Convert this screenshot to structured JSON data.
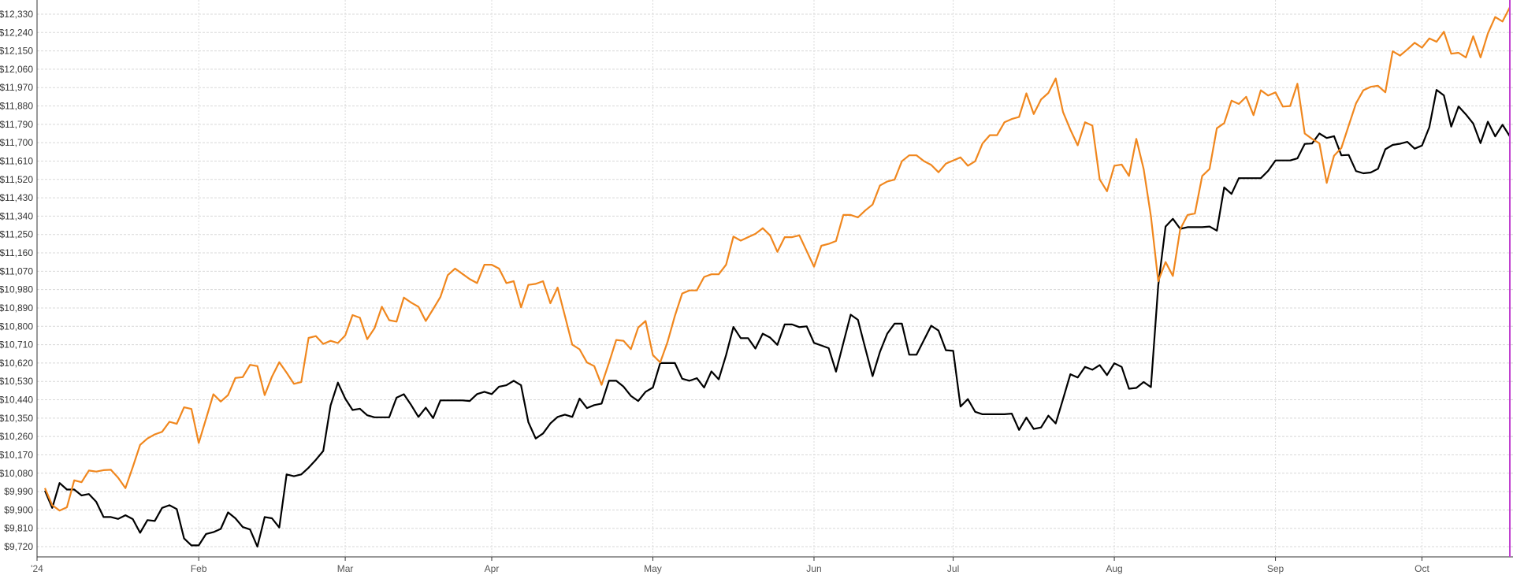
{
  "chart_data": {
    "type": "line",
    "title": "",
    "xlabel": "",
    "ylabel": "",
    "ylim": [
      9720,
      12330
    ],
    "grid": true,
    "legend": "none",
    "y_ticks": [
      9720,
      9810,
      9900,
      9990,
      10080,
      10170,
      10260,
      10350,
      10440,
      10530,
      10620,
      10710,
      10800,
      10890,
      10980,
      11070,
      11160,
      11250,
      11340,
      11430,
      11520,
      11610,
      11700,
      11790,
      11880,
      11970,
      12060,
      12150,
      12240,
      12330
    ],
    "y_tick_labels": [
      "$9,720",
      "$9,810",
      "$9,900",
      "$9,990",
      "$10,080",
      "$10,170",
      "$10,260",
      "$10,350",
      "$10,440",
      "$10,530",
      "$10,620",
      "$10,710",
      "$10,800",
      "$10,890",
      "$10,980",
      "$11,070",
      "$11,160",
      "$11,250",
      "$11,340",
      "$11,430",
      "$11,520",
      "$11,610",
      "$11,700",
      "$11,790",
      "$11,880",
      "$11,970",
      "$12,060",
      "$12,150",
      "$12,240",
      "$12,330"
    ],
    "x_ticks": [
      {
        "label": "'24",
        "date": "2024-01-02"
      },
      {
        "label": "Feb",
        "date": "2024-02-01"
      },
      {
        "label": "Mar",
        "date": "2024-03-01"
      },
      {
        "label": "Apr",
        "date": "2024-04-01"
      },
      {
        "label": "May",
        "date": "2024-05-01"
      },
      {
        "label": "Jun",
        "date": "2024-06-03"
      },
      {
        "label": "Jul",
        "date": "2024-07-01"
      },
      {
        "label": "Aug",
        "date": "2024-08-01"
      },
      {
        "label": "Sep",
        "date": "2024-09-03"
      },
      {
        "label": "Oct",
        "date": "2024-10-01"
      }
    ],
    "cursor_color": "#c040d0",
    "x": [
      "2024-01-02",
      "2024-01-03",
      "2024-01-04",
      "2024-01-05",
      "2024-01-08",
      "2024-01-09",
      "2024-01-10",
      "2024-01-11",
      "2024-01-12",
      "2024-01-16",
      "2024-01-17",
      "2024-01-18",
      "2024-01-19",
      "2024-01-22",
      "2024-01-23",
      "2024-01-24",
      "2024-01-25",
      "2024-01-26",
      "2024-01-29",
      "2024-01-30",
      "2024-01-31",
      "2024-02-01",
      "2024-02-02",
      "2024-02-05",
      "2024-02-06",
      "2024-02-07",
      "2024-02-08",
      "2024-02-09",
      "2024-02-12",
      "2024-02-13",
      "2024-02-14",
      "2024-02-15",
      "2024-02-16",
      "2024-02-20",
      "2024-02-21",
      "2024-02-22",
      "2024-02-23",
      "2024-02-26",
      "2024-02-27",
      "2024-02-28",
      "2024-02-29",
      "2024-03-01",
      "2024-03-04",
      "2024-03-05",
      "2024-03-06",
      "2024-03-07",
      "2024-03-08",
      "2024-03-11",
      "2024-03-12",
      "2024-03-13",
      "2024-03-14",
      "2024-03-15",
      "2024-03-18",
      "2024-03-19",
      "2024-03-20",
      "2024-03-21",
      "2024-03-22",
      "2024-03-25",
      "2024-03-26",
      "2024-03-27",
      "2024-03-28",
      "2024-04-01",
      "2024-04-02",
      "2024-04-03",
      "2024-04-04",
      "2024-04-05",
      "2024-04-08",
      "2024-04-09",
      "2024-04-10",
      "2024-04-11",
      "2024-04-12",
      "2024-04-15",
      "2024-04-16",
      "2024-04-17",
      "2024-04-18",
      "2024-04-19",
      "2024-04-22",
      "2024-04-23",
      "2024-04-24",
      "2024-04-25",
      "2024-04-26",
      "2024-04-29",
      "2024-04-30",
      "2024-05-01",
      "2024-05-02",
      "2024-05-03",
      "2024-05-06",
      "2024-05-07",
      "2024-05-08",
      "2024-05-09",
      "2024-05-10",
      "2024-05-13",
      "2024-05-14",
      "2024-05-15",
      "2024-05-16",
      "2024-05-17",
      "2024-05-20",
      "2024-05-21",
      "2024-05-22",
      "2024-05-23",
      "2024-05-24",
      "2024-05-28",
      "2024-05-29",
      "2024-05-30",
      "2024-05-31",
      "2024-06-03",
      "2024-06-04",
      "2024-06-05",
      "2024-06-06",
      "2024-06-07",
      "2024-06-10",
      "2024-06-11",
      "2024-06-12",
      "2024-06-13",
      "2024-06-14",
      "2024-06-17",
      "2024-06-18",
      "2024-06-20",
      "2024-06-21",
      "2024-06-24",
      "2024-06-25",
      "2024-06-26",
      "2024-06-27",
      "2024-06-28",
      "2024-07-01",
      "2024-07-02",
      "2024-07-03",
      "2024-07-05",
      "2024-07-08",
      "2024-07-09",
      "2024-07-10",
      "2024-07-11",
      "2024-07-12",
      "2024-07-15",
      "2024-07-16",
      "2024-07-17",
      "2024-07-18",
      "2024-07-19",
      "2024-07-22",
      "2024-07-23",
      "2024-07-24",
      "2024-07-25",
      "2024-07-26",
      "2024-07-29",
      "2024-07-30",
      "2024-07-31",
      "2024-08-01",
      "2024-08-02",
      "2024-08-05",
      "2024-08-06",
      "2024-08-07",
      "2024-08-08",
      "2024-08-09",
      "2024-08-12",
      "2024-08-13",
      "2024-08-14",
      "2024-08-15",
      "2024-08-16",
      "2024-08-19",
      "2024-08-20",
      "2024-08-21",
      "2024-08-22",
      "2024-08-23",
      "2024-08-26",
      "2024-08-27",
      "2024-08-28",
      "2024-08-29",
      "2024-08-30",
      "2024-09-03",
      "2024-09-04",
      "2024-09-05",
      "2024-09-06",
      "2024-09-09",
      "2024-09-10",
      "2024-09-11",
      "2024-09-12",
      "2024-09-13",
      "2024-09-16",
      "2024-09-17",
      "2024-09-18",
      "2024-09-19",
      "2024-09-20",
      "2024-09-23",
      "2024-09-24",
      "2024-09-25",
      "2024-09-26",
      "2024-09-27",
      "2024-09-30",
      "2024-10-01",
      "2024-10-02",
      "2024-10-03",
      "2024-10-04",
      "2024-10-07",
      "2024-10-08",
      "2024-10-09",
      "2024-10-10",
      "2024-10-11",
      "2024-10-14",
      "2024-10-15",
      "2024-10-16",
      "2024-10-17"
    ],
    "series": [
      {
        "color": "#000000",
        "values": [
          9994,
          9910,
          10032,
          10000,
          10000,
          9971,
          9978,
          9940,
          9865,
          9865,
          9856,
          9874,
          9855,
          9788,
          9850,
          9846,
          9910,
          9923,
          9904,
          9760,
          9726,
          9726,
          9782,
          9791,
          9807,
          9888,
          9859,
          9816,
          9804,
          9720,
          9865,
          9859,
          9814,
          10074,
          10065,
          10074,
          10107,
          10146,
          10189,
          10412,
          10524,
          10446,
          10390,
          10396,
          10364,
          10354,
          10354,
          10354,
          10450,
          10467,
          10414,
          10356,
          10401,
          10350,
          10437,
          10437,
          10437,
          10437,
          10434,
          10468,
          10479,
          10468,
          10504,
          10511,
          10533,
          10511,
          10330,
          10250,
          10275,
          10324,
          10356,
          10367,
          10356,
          10446,
          10399,
          10414,
          10421,
          10533,
          10533,
          10504,
          10459,
          10434,
          10479,
          10500,
          10620,
          10620,
          10620,
          10543,
          10533,
          10546,
          10500,
          10579,
          10540,
          10659,
          10797,
          10742,
          10742,
          10691,
          10764,
          10745,
          10709,
          10809,
          10809,
          10796,
          10800,
          10719,
          10706,
          10693,
          10578,
          10718,
          10857,
          10832,
          10693,
          10556,
          10674,
          10764,
          10813,
          10813,
          10661,
          10661,
          10732,
          10803,
          10779,
          10683,
          10680,
          10407,
          10443,
          10381,
          10369,
          10369,
          10369,
          10369,
          10372,
          10292,
          10353,
          10297,
          10304,
          10362,
          10324,
          10443,
          10565,
          10549,
          10601,
          10587,
          10610,
          10561,
          10619,
          10601,
          10494,
          10498,
          10527,
          10502,
          11000,
          11289,
          11327,
          11278,
          11286,
          11286,
          11286,
          11289,
          11269,
          11481,
          11449,
          11526,
          11526,
          11526,
          11526,
          11562,
          11613,
          11613,
          11613,
          11623,
          11694,
          11696,
          11745,
          11723,
          11732,
          11638,
          11640,
          11561,
          11550,
          11554,
          11572,
          11668,
          11689,
          11695,
          11704,
          11671,
          11686,
          11776,
          11959,
          11932,
          11779,
          11878,
          11839,
          11794,
          11698,
          11803,
          11731,
          11788,
          11731
        ]
      },
      {
        "color": "#f0871e",
        "values": [
          10007,
          9923,
          9897,
          9913,
          10045,
          10036,
          10093,
          10088,
          10095,
          10097,
          10058,
          10007,
          10110,
          10219,
          10250,
          10270,
          10283,
          10332,
          10322,
          10403,
          10395,
          10228,
          10347,
          10467,
          10431,
          10463,
          10547,
          10551,
          10611,
          10605,
          10463,
          10553,
          10624,
          10573,
          10518,
          10527,
          10743,
          10752,
          10714,
          10729,
          10718,
          10755,
          10855,
          10842,
          10737,
          10791,
          10896,
          10830,
          10823,
          10941,
          10916,
          10896,
          10826,
          10884,
          10944,
          11051,
          11083,
          11057,
          11031,
          11012,
          11102,
          11102,
          11083,
          11012,
          11021,
          10893,
          11003,
          11008,
          11021,
          10913,
          10990,
          10851,
          10710,
          10687,
          10623,
          10605,
          10513,
          10620,
          10733,
          10729,
          10688,
          10794,
          10826,
          10659,
          10623,
          10723,
          10851,
          10961,
          10976,
          10976,
          11042,
          11055,
          11055,
          11102,
          11240,
          11220,
          11237,
          11253,
          11281,
          11246,
          11165,
          11237,
          11237,
          11246,
          11169,
          11092,
          11195,
          11204,
          11218,
          11346,
          11346,
          11334,
          11368,
          11397,
          11490,
          11510,
          11519,
          11609,
          11638,
          11638,
          11610,
          11591,
          11555,
          11597,
          11613,
          11628,
          11587,
          11609,
          11696,
          11737,
          11737,
          11800,
          11816,
          11826,
          11942,
          11841,
          11912,
          11944,
          12015,
          11850,
          11764,
          11687,
          11800,
          11784,
          11520,
          11462,
          11587,
          11593,
          11537,
          11719,
          11571,
          11340,
          11021,
          11115,
          11047,
          11276,
          11346,
          11353,
          11537,
          11571,
          11771,
          11796,
          11906,
          11890,
          11925,
          11835,
          11957,
          11931,
          11947,
          11877,
          11880,
          11989,
          11745,
          11719,
          11697,
          11503,
          11636,
          11674,
          11784,
          11893,
          11957,
          11974,
          11979,
          11947,
          12148,
          12127,
          12157,
          12190,
          12166,
          12211,
          12195,
          12244,
          12136,
          12141,
          12118,
          12222,
          12118,
          12235,
          12316,
          12294,
          12364
        ]
      }
    ]
  }
}
